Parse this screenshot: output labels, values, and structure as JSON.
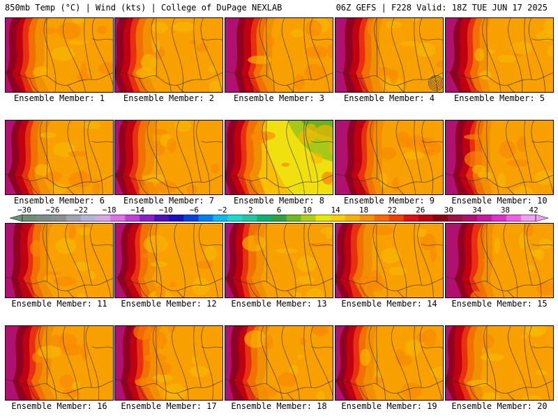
{
  "header": {
    "left_title": "850mb Temp (°C) | Wind (kts) | College of DuPage NEXLAB",
    "right_title": "06Z GEFS | F228 Valid: 18Z TUE JUN 17 2025"
  },
  "panels": [
    {
      "label": "Ensemble Member: 1"
    },
    {
      "label": "Ensemble Member: 2"
    },
    {
      "label": "Ensemble Member: 3"
    },
    {
      "label": "Ensemble Member: 4"
    },
    {
      "label": "Ensemble Member: 5"
    },
    {
      "label": "Ensemble Member: 6"
    },
    {
      "label": "Ensemble Member: 7"
    },
    {
      "label": "Ensemble Member: 8"
    },
    {
      "label": "Ensemble Member: 9"
    },
    {
      "label": "Ensemble Member: 10"
    },
    {
      "label": "Ensemble Member: 11"
    },
    {
      "label": "Ensemble Member: 12"
    },
    {
      "label": "Ensemble Member: 13"
    },
    {
      "label": "Ensemble Member: 14"
    },
    {
      "label": "Ensemble Member: 15"
    },
    {
      "label": "Ensemble Member: 16"
    },
    {
      "label": "Ensemble Member: 17"
    },
    {
      "label": "Ensemble Member: 18"
    },
    {
      "label": "Ensemble Member: 19"
    },
    {
      "label": "Ensemble Member: 20"
    }
  ],
  "colorbar": {
    "tick_labels": [
      "−30",
      "−26",
      "−22",
      "−18",
      "−14",
      "−10",
      "−6",
      "−2",
      "2",
      "6",
      "10",
      "14",
      "18",
      "22",
      "26",
      "30",
      "34",
      "38",
      "42"
    ],
    "colors": [
      "#6e8f74",
      "#7d8e84",
      "#8a8f92",
      "#a0a4b0",
      "#b7b3d6",
      "#d7a8e8",
      "#e070e8",
      "#c040d8",
      "#8a20c8",
      "#5010b8",
      "#1a10c0",
      "#0a40e0",
      "#0080f0",
      "#10b8f0",
      "#20d8d0",
      "#20c8a0",
      "#10b070",
      "#30a040",
      "#70b820",
      "#b0d010",
      "#e8e800",
      "#f8d000",
      "#f8b000",
      "#f89000",
      "#f86800",
      "#f04000",
      "#e01010",
      "#c00010",
      "#900010",
      "#a01040",
      "#b01070",
      "#c818a0",
      "#e030c8",
      "#f060e0",
      "#f0a0f0"
    ]
  }
}
